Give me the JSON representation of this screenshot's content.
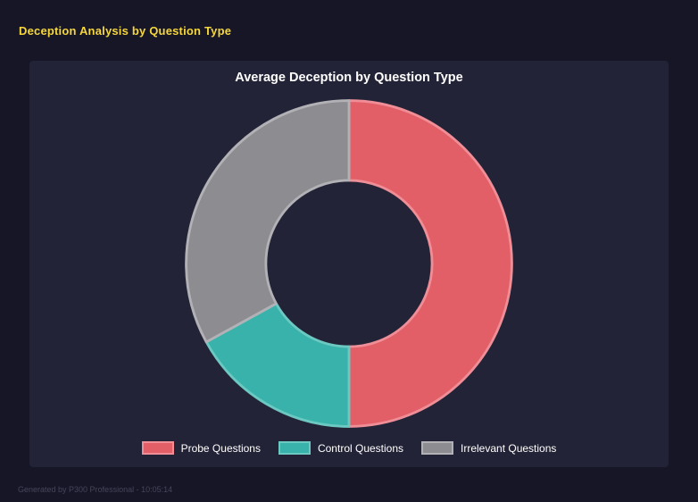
{
  "page": {
    "title": "Deception Analysis by Question Type",
    "footer": "Generated by P300 Professional - 10:05:14"
  },
  "chart_data": {
    "type": "pie",
    "donut": true,
    "title": "Average Deception by Question Type",
    "categories": [
      "Probe Questions",
      "Control Questions",
      "Irrelevant Questions"
    ],
    "values": [
      50,
      17,
      33
    ],
    "colors": [
      "#e25f68",
      "#38b2aa",
      "#8d8d91"
    ],
    "border_colors": [
      "#ef8e96",
      "#6cc9c2",
      "#b2b2b6"
    ],
    "legend_position": "bottom",
    "background": "#232337"
  }
}
